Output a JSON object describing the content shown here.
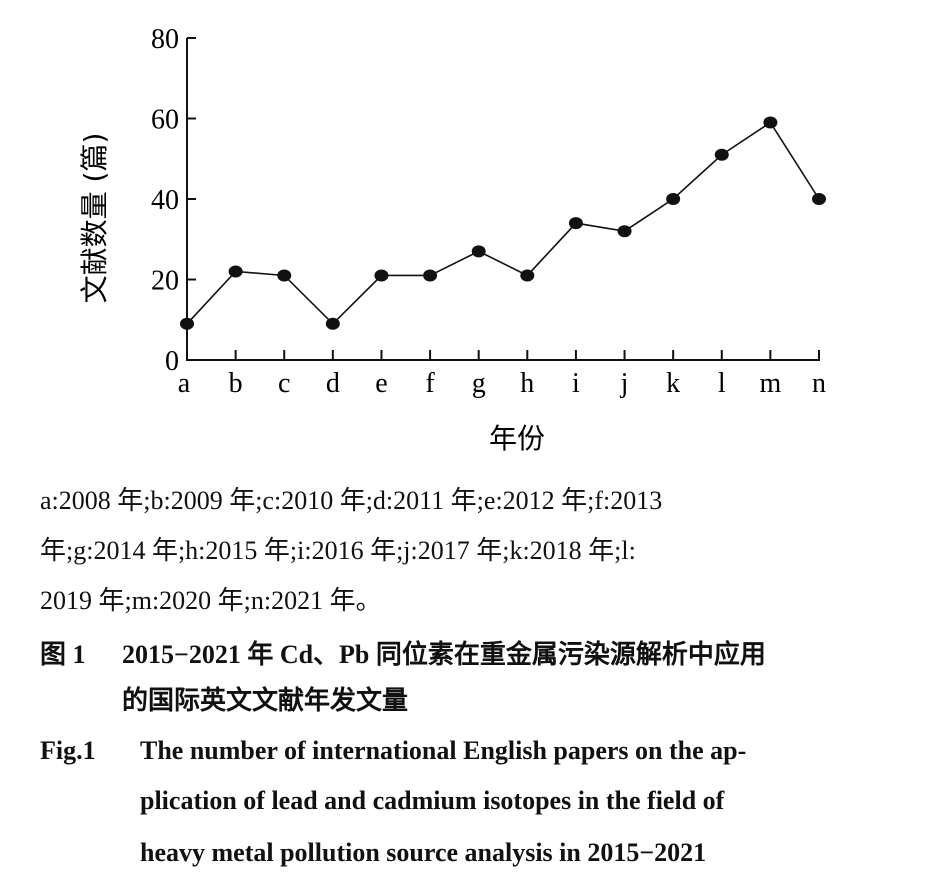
{
  "chart_data": {
    "type": "line",
    "title": "",
    "xlabel": "年份",
    "ylabel": "文献数量 (篇)",
    "categories": [
      "a",
      "b",
      "c",
      "d",
      "e",
      "f",
      "g",
      "h",
      "i",
      "j",
      "k",
      "l",
      "m",
      "n"
    ],
    "series": [
      {
        "name": "papers",
        "values": [
          9,
          22,
          21,
          9,
          21,
          21,
          27,
          21,
          34,
          32,
          40,
          51,
          59,
          40
        ]
      }
    ],
    "ylim": [
      0,
      80
    ],
    "yticks": [
      0,
      20,
      40,
      60,
      80
    ],
    "grid": false
  },
  "caption": {
    "legend_lines": [
      "a:2008 年;b:2009 年;c:2010 年;d:2011 年;e:2012 年;f:2013",
      "年;g:2014 年;h:2015 年;i:2016 年;j:2017 年;k:2018 年;l:",
      "2019 年;m:2020 年;n:2021 年。"
    ],
    "cn_label": "图 1",
    "cn_lines": [
      "2015−2021 年 Cd、Pb 同位素在重金属污染源解析中应用",
      "的国际英文文献年发文量"
    ],
    "en_label": "Fig.1",
    "en_lines": [
      "The number of international English papers on the ap-",
      "plication of lead and cadmium isotopes in the field of",
      "heavy metal pollution source analysis in 2015−2021"
    ]
  }
}
